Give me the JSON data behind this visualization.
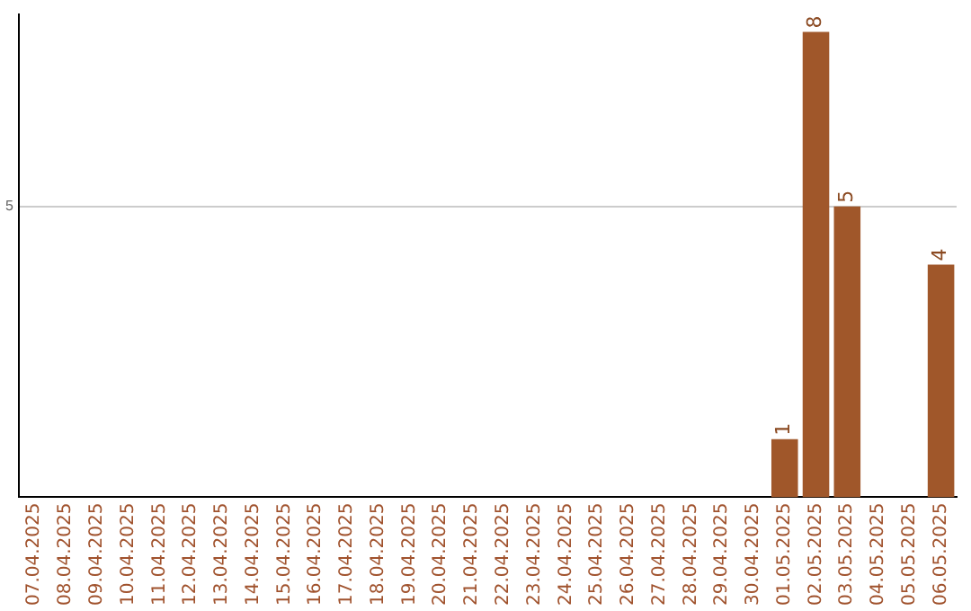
{
  "chart_data": {
    "type": "bar",
    "categories": [
      "07.04.2025",
      "08.04.2025",
      "09.04.2025",
      "10.04.2025",
      "11.04.2025",
      "12.04.2025",
      "13.04.2025",
      "14.04.2025",
      "15.04.2025",
      "16.04.2025",
      "17.04.2025",
      "18.04.2025",
      "19.04.2025",
      "20.04.2025",
      "21.04.2025",
      "22.04.2025",
      "23.04.2025",
      "24.04.2025",
      "25.04.2025",
      "26.04.2025",
      "27.04.2025",
      "28.04.2025",
      "29.04.2025",
      "30.04.2025",
      "01.05.2025",
      "02.05.2025",
      "03.05.2025",
      "04.05.2025",
      "05.05.2025",
      "06.05.2025"
    ],
    "values": [
      null,
      null,
      null,
      null,
      null,
      null,
      null,
      null,
      null,
      null,
      null,
      null,
      null,
      null,
      null,
      null,
      null,
      null,
      null,
      null,
      null,
      null,
      null,
      null,
      1,
      8,
      5,
      null,
      null,
      4
    ],
    "data_labels": true,
    "color": "#a0572a",
    "ylim": [
      0,
      8.3
    ],
    "yticks": [
      5
    ],
    "grid": "y",
    "legend": false
  }
}
